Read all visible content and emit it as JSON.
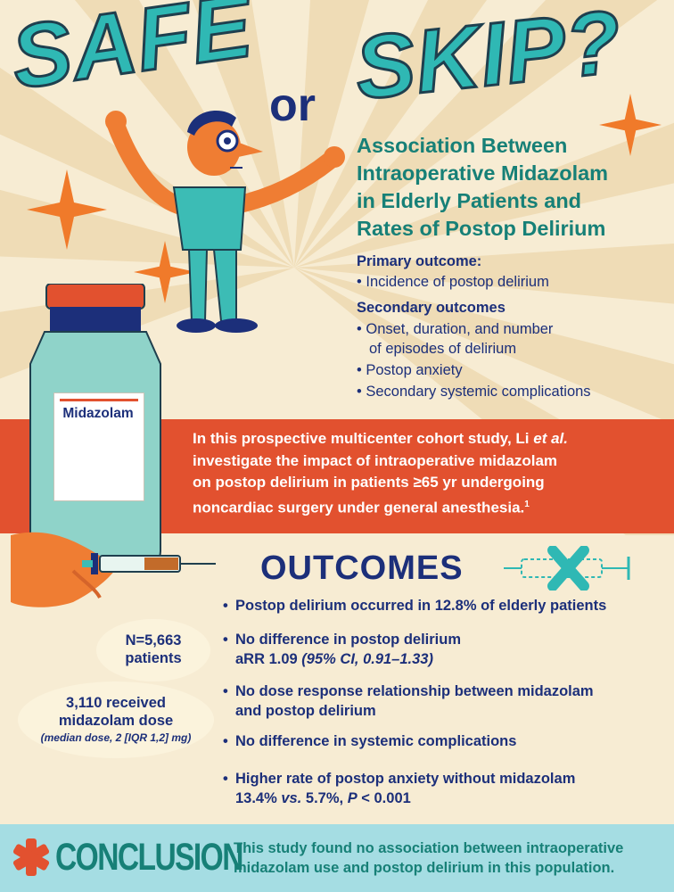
{
  "header": {
    "title_word1": "SAFE",
    "title_connector": "or",
    "title_word2": "SKIP?"
  },
  "study": {
    "title_lines": [
      "Association Between",
      "Intraoperative Midazolam",
      "in Elderly Patients and",
      "Rates of Postop Delirium"
    ],
    "primary_heading": "Primary outcome:",
    "primary_items": [
      "Incidence of postop delirium"
    ],
    "secondary_heading": "Secondary outcomes",
    "secondary_items": [
      "Onset, duration, and number",
      "of episodes of delirium",
      "Postop anxiety",
      "Secondary systemic complications"
    ],
    "bullet": "•"
  },
  "bottle": {
    "label": "Midazolam"
  },
  "summary_band": {
    "line1_prefix": "In this prospective multicenter cohort study, Li ",
    "line1_italic": "et al.",
    "lines": [
      "investigate the impact of intraoperative midazolam",
      "on postop delirium in patients ≥65 yr undergoing",
      "noncardiac surgery under general anesthesia."
    ],
    "footnote": "1"
  },
  "outcomes": {
    "heading": "OUTCOMES",
    "items": [
      {
        "line1": "Postop delirium occurred in 12.8% of elderly patients"
      },
      {
        "line1": "No difference in postop delirium",
        "line2_plain": "aRR 1.09 ",
        "line2_italic": "(95% CI, 0.91–1.33)"
      },
      {
        "line1": "No dose response relationship between midazolam",
        "line2_plain": "and postop delirium"
      },
      {
        "line1": "No difference in systemic complications"
      },
      {
        "line1": "Higher rate of postop anxiety without midazolam",
        "line2_plain": "13.4% ",
        "line2_italic": "vs.",
        "line2_rest": " 5.7%, ",
        "line2_p": "P",
        "line2_end": " < 0.001"
      }
    ]
  },
  "stats": {
    "n_line1": "N=5,663",
    "n_line2": "patients",
    "dose_line1": "3,110 received",
    "dose_line2": "midazolam dose",
    "dose_line3": "(median dose, 2 [IQR 1,2] mg)"
  },
  "conclusion": {
    "title": "CONCLUSION",
    "line1": "This study found no association between intraoperative",
    "line2": "midazolam use and postop delirium in this population."
  },
  "colors": {
    "navy": "#1c2f7a",
    "teal": "#178077",
    "aqua": "#2fb8b4",
    "orange": "#e2512f",
    "cream": "#f7ecd3",
    "conclusion_bg": "#a5dde3"
  }
}
